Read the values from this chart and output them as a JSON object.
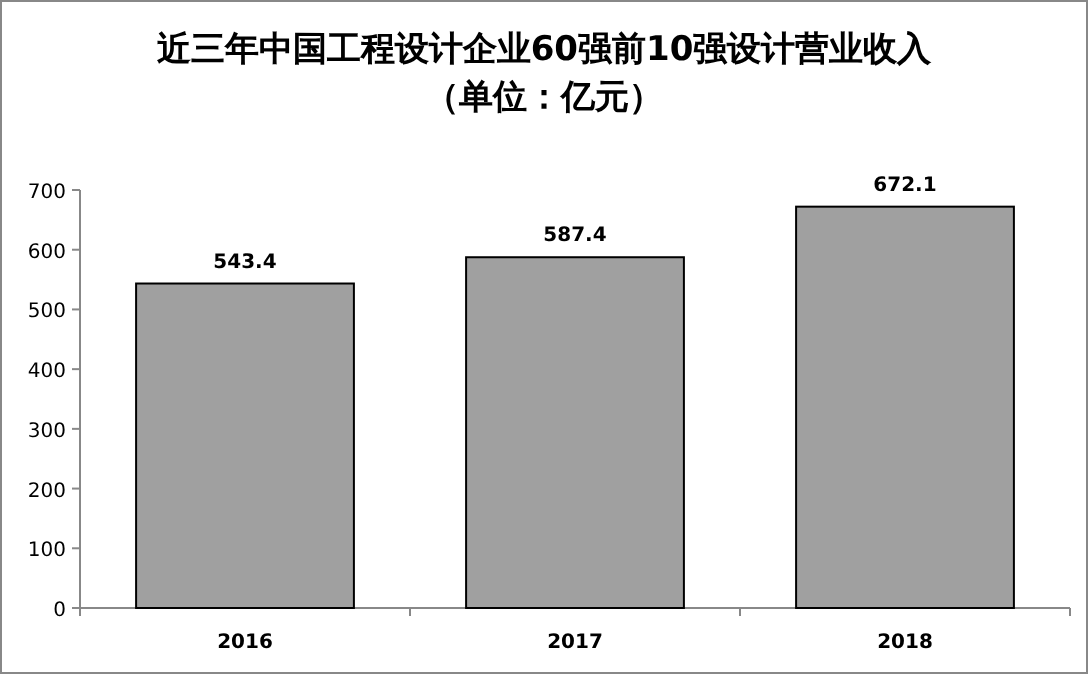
{
  "chart_data": {
    "type": "bar",
    "title": "近三年中国工程设计企业60强前10强设计营业收入",
    "subtitle": "（单位：亿元）",
    "categories": [
      "2016",
      "2017",
      "2018"
    ],
    "values": [
      543.4,
      587.4,
      672.1
    ],
    "color": "#a0a0a0",
    "ylim": [
      0,
      700
    ],
    "yticks": [
      0,
      100,
      200,
      300,
      400,
      500,
      600,
      700
    ],
    "data_labels": true,
    "grid": false
  }
}
